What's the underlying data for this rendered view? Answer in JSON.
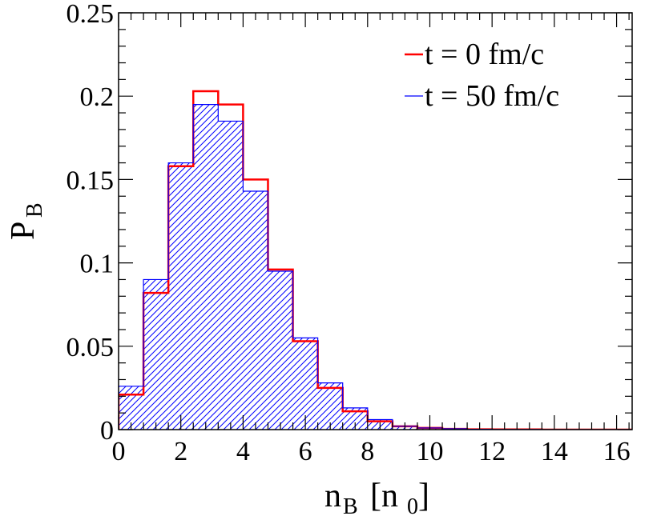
{
  "chart_data": {
    "type": "histogram",
    "xlabel": "n",
    "xlabel_sub": "B",
    "xlabel_unit_open": "[n",
    "xlabel_unit_sub": "0",
    "xlabel_unit_close": "]",
    "ylabel": "P",
    "ylabel_sub": "B",
    "xlim": [
      0,
      16.5
    ],
    "ylim": [
      0,
      0.25
    ],
    "x_ticks": [
      0,
      2,
      4,
      6,
      8,
      10,
      12,
      14,
      16
    ],
    "x_tick_labels": [
      "0",
      "2",
      "4",
      "6",
      "8",
      "10",
      "12",
      "14",
      "16"
    ],
    "y_ticks": [
      0,
      0.05,
      0.1,
      0.15,
      0.2,
      0.25
    ],
    "y_tick_labels": [
      "0",
      "0.05",
      "0.1",
      "0.15",
      "0.2",
      "0.25"
    ],
    "legend_position": "top-right",
    "grid": false,
    "bin_width": 0.8,
    "bin_edges": [
      0,
      0.8,
      1.6,
      2.4,
      3.2,
      4.0,
      4.8,
      5.6,
      6.4,
      7.2,
      8.0,
      8.8,
      9.6,
      10.4,
      11.2,
      12.0,
      12.8,
      13.6,
      14.4,
      15.2,
      16.0,
      16.5
    ],
    "series": [
      {
        "name": "t = 0 fm/c",
        "color": "#ff0000",
        "style": "line",
        "values": [
          0.021,
          0.082,
          0.158,
          0.203,
          0.195,
          0.15,
          0.096,
          0.053,
          0.025,
          0.011,
          0.005,
          0.002,
          0.001,
          0.0004,
          0.0002,
          0.0001,
          0.0001,
          0.0,
          0.0,
          0.0,
          0.0
        ]
      },
      {
        "name": "t = 50 fm/c",
        "color": "#0000ff",
        "style": "hatched",
        "values": [
          0.026,
          0.09,
          0.16,
          0.195,
          0.185,
          0.143,
          0.095,
          0.055,
          0.028,
          0.013,
          0.006,
          0.002,
          0.001,
          0.0005,
          0.0002,
          0.0001,
          0.0001,
          0.0,
          0.0,
          0.0,
          0.0
        ]
      }
    ]
  }
}
